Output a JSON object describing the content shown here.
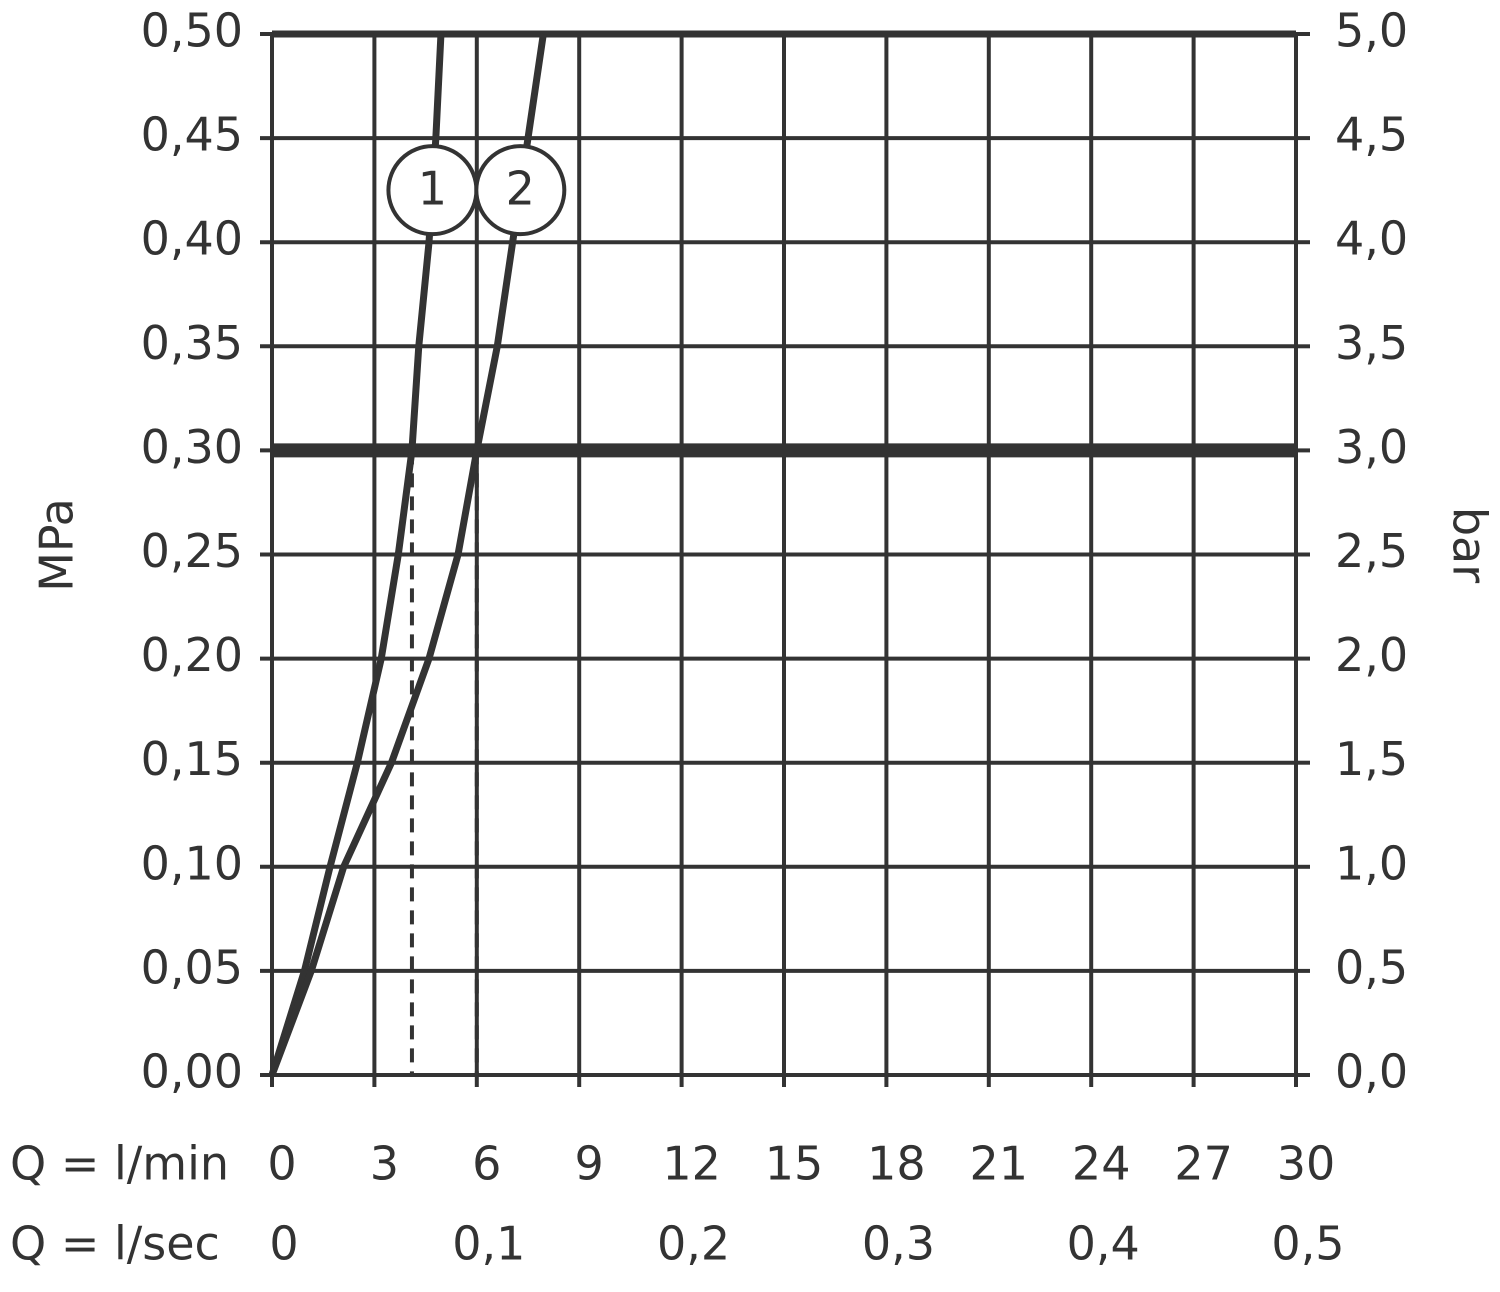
{
  "chart_data": {
    "type": "line",
    "x_label": "Q = l/min",
    "x2_label": "Q = l/sec",
    "y_label": "MPa",
    "y2_label": "bar",
    "xlim": [
      0,
      30
    ],
    "xticks": [
      0,
      3,
      6,
      9,
      12,
      15,
      18,
      21,
      24,
      27,
      30
    ],
    "x2lim": [
      0,
      0.5
    ],
    "x2ticks": [
      0,
      {
        "value": 0.1,
        "label": "0,1"
      },
      {
        "value": 0.2,
        "label": "0,2"
      },
      {
        "value": 0.3,
        "label": "0,3"
      },
      {
        "value": 0.4,
        "label": "0,4"
      },
      {
        "value": 0.5,
        "label": "0,5"
      }
    ],
    "ylim": [
      0,
      0.5
    ],
    "yticks": [
      {
        "value": 0,
        "label": "0,00"
      },
      {
        "value": 0.05,
        "label": "0,05"
      },
      {
        "value": 0.1,
        "label": "0,10"
      },
      {
        "value": 0.15,
        "label": "0,15"
      },
      {
        "value": 0.2,
        "label": "0,20"
      },
      {
        "value": 0.25,
        "label": "0,25"
      },
      {
        "value": 0.3,
        "label": "0,30"
      },
      {
        "value": 0.35,
        "label": "0,35"
      },
      {
        "value": 0.4,
        "label": "0,40"
      },
      {
        "value": 0.45,
        "label": "0,45"
      },
      {
        "value": 0.5,
        "label": "0,50"
      }
    ],
    "y2lim": [
      0,
      5
    ],
    "y2ticks": [
      {
        "value": 0,
        "label": "0,0"
      },
      {
        "value": 0.5,
        "label": "0,5"
      },
      {
        "value": 1,
        "label": "1,0"
      },
      {
        "value": 1.5,
        "label": "1,5"
      },
      {
        "value": 2,
        "label": "2,0"
      },
      {
        "value": 2.5,
        "label": "2,5"
      },
      {
        "value": 3,
        "label": "3,0"
      },
      {
        "value": 3.5,
        "label": "3,5"
      },
      {
        "value": 4,
        "label": "4,0"
      },
      {
        "value": 4.5,
        "label": "4,5"
      },
      {
        "value": 5,
        "label": "5,0"
      }
    ],
    "grid": true,
    "reference_y": 0.3,
    "reference_x": [
      4.1,
      6
    ],
    "series": [
      {
        "name": "1",
        "color": "#333333",
        "x": [
          0,
          0.95,
          1.7,
          2.5,
          3.2,
          3.7,
          4.1,
          4.3,
          4.6,
          4.8,
          4.95
        ],
        "values": [
          0,
          0.05,
          0.1,
          0.15,
          0.2,
          0.25,
          0.3,
          0.35,
          0.4,
          0.45,
          0.5
        ]
      },
      {
        "name": "2",
        "color": "#333333",
        "x": [
          0,
          1.15,
          2.1,
          3.5,
          4.6,
          5.45,
          6.0,
          6.6,
          7.05,
          7.5,
          7.95
        ],
        "values": [
          0,
          0.05,
          0.1,
          0.15,
          0.2,
          0.25,
          0.3,
          0.35,
          0.4,
          0.45,
          0.5
        ]
      }
    ]
  }
}
